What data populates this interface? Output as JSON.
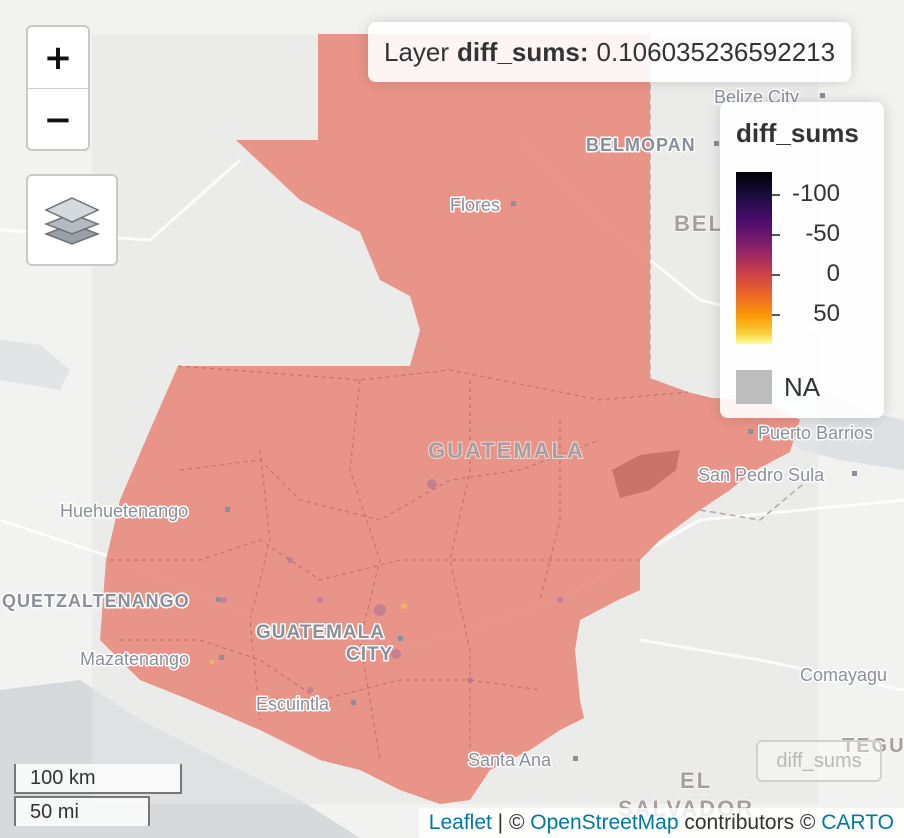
{
  "info": {
    "prefix": "Layer",
    "layer_name": "diff_sums:",
    "value": "0.106035236592213"
  },
  "zoom": {
    "in_label": "+",
    "out_label": "−"
  },
  "layers_control": {
    "icon": "layers-icon"
  },
  "legend": {
    "title": "diff_sums",
    "labels": [
      "-100",
      "-50",
      "0",
      "50"
    ],
    "na_label": "NA",
    "palette": "inferno",
    "na_color": "#bdbdbd"
  },
  "group_tag": "diff_sums",
  "scale": {
    "km": "100 km",
    "mi": "50 mi"
  },
  "attribution": {
    "leaflet": "Leaflet",
    "sep1": " | © ",
    "osm": "OpenStreetMap",
    "contributors": " contributors © ",
    "carto": "CARTO"
  },
  "places": {
    "belize_city": "Belize City",
    "belmopan": "BELMOPAN",
    "flores": "Flores",
    "belize_country": "BEL",
    "guatemala_country": "GUATEMALA",
    "puerto_barrios": "Puerto Barrios",
    "san_pedro_sula": "San Pedro Sula",
    "huehuetenango": "Huehuetenango",
    "quetzaltenango": "QUETZALTENANGO",
    "guatemala_city_1": "GUATEMALA",
    "guatemala_city_2": "CITY",
    "mazatenango": "Mazatenango",
    "escuintla": "Escuintla",
    "santa_ana": "Santa Ana",
    "el_salvador_1": "EL",
    "el_salvador_2": "SALVADOR",
    "comayagua": "Comayagu",
    "tegucigalpa": "TEGU"
  },
  "colors": {
    "fill": "#e88b7d",
    "land": "#f2f2f0",
    "water": "#d4dadc",
    "raster_extent": "#e6e6e6"
  }
}
